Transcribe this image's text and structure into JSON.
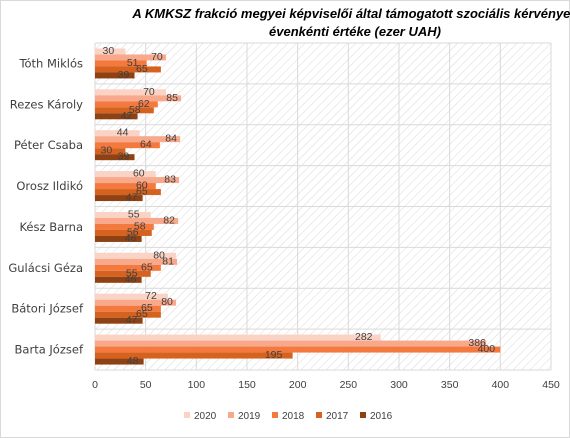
{
  "chart_data": {
    "type": "bar",
    "orientation": "horizontal",
    "title": "A KMKSZ frakció megyei képviselői által támogatott szociális kérvények évenkénti értéke (ezer UAH)",
    "title_lines": [
      "A KMKSZ frakció megyei képviselői által támogatott szociális kérvények",
      "évenkénti értéke (ezer UAH)"
    ],
    "xlabel": "",
    "ylabel": "",
    "xlim": [
      0,
      450
    ],
    "x_ticks": [
      0,
      50,
      100,
      150,
      200,
      250,
      300,
      350,
      400,
      450
    ],
    "x_tick_labels": [
      "0",
      "50",
      "100",
      "150",
      "200",
      "250",
      "300",
      "350",
      "400",
      "450"
    ],
    "grid": true,
    "legend_position": "bottom",
    "categories": [
      "Tóth Miklós",
      "Rezes Károly",
      "Péter Csaba",
      "Orosz Ildikó",
      "Kész Barna",
      "Gulácsi Géza",
      "Bátori József",
      "Barta József"
    ],
    "series": [
      {
        "name": "2020",
        "color": "#FBD3C5",
        "values": [
          30,
          70,
          44,
          60,
          55,
          80,
          72,
          282
        ]
      },
      {
        "name": "2019",
        "color": "#F8A98C",
        "values": [
          70,
          85,
          84,
          83,
          82,
          81,
          80,
          386
        ]
      },
      {
        "name": "2018",
        "color": "#F4793F",
        "values": [
          51,
          62,
          64,
          60,
          58,
          65,
          65,
          400
        ]
      },
      {
        "name": "2017",
        "color": "#D5621E",
        "values": [
          65,
          58,
          30,
          65,
          56,
          55,
          65,
          195
        ]
      },
      {
        "name": "2016",
        "color": "#8E4113",
        "values": [
          39,
          42,
          39,
          47,
          46,
          46,
          47,
          48
        ]
      }
    ]
  }
}
